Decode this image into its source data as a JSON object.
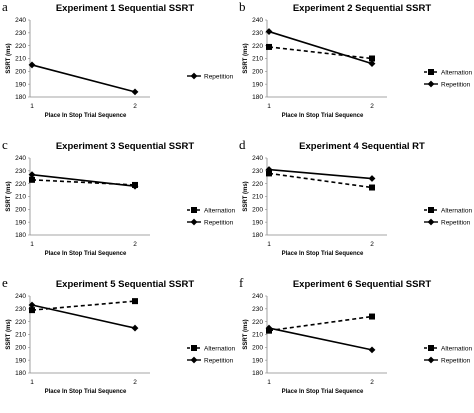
{
  "chart_data": [
    {
      "type": "line",
      "panel": "a",
      "title": "Experiment 1 Sequential SSRT",
      "xlabel": "Place In Stop Trial Sequence",
      "ylabel": "SSRT (ms)",
      "categories": [
        "1",
        "2"
      ],
      "ylim": [
        180,
        240
      ],
      "yticks": [
        180,
        190,
        200,
        210,
        220,
        230,
        240
      ],
      "series": [
        {
          "name": "Repetition",
          "values": [
            205,
            184
          ],
          "dash": false,
          "marker": "diamond"
        }
      ]
    },
    {
      "type": "line",
      "panel": "b",
      "title": "Experiment 2 Sequential SSRT",
      "xlabel": "Place In Stop Trial Sequence",
      "ylabel": "SSRT (ms)",
      "categories": [
        "1",
        "2"
      ],
      "ylim": [
        180,
        240
      ],
      "yticks": [
        180,
        190,
        200,
        210,
        220,
        230,
        240
      ],
      "series": [
        {
          "name": "Alternation",
          "values": [
            219,
            210
          ],
          "dash": true,
          "marker": "square"
        },
        {
          "name": "Repetition",
          "values": [
            231,
            206
          ],
          "dash": false,
          "marker": "diamond"
        }
      ]
    },
    {
      "type": "line",
      "panel": "c",
      "title": "Experiment 3 Sequential SSRT",
      "xlabel": "Place In Stop Trial Sequence",
      "ylabel": "SSRT (ms)",
      "categories": [
        "1",
        "2"
      ],
      "ylim": [
        180,
        240
      ],
      "yticks": [
        180,
        190,
        200,
        210,
        220,
        230,
        240
      ],
      "series": [
        {
          "name": "Alternation",
          "values": [
            223,
            219
          ],
          "dash": true,
          "marker": "square"
        },
        {
          "name": "Repetition",
          "values": [
            227,
            218
          ],
          "dash": false,
          "marker": "diamond"
        }
      ]
    },
    {
      "type": "line",
      "panel": "d",
      "title": "Experiment 4 Sequential RT",
      "xlabel": "Place In Stop Trial Sequence",
      "ylabel": "SSRT (ms)",
      "categories": [
        "1",
        "2"
      ],
      "ylim": [
        180,
        240
      ],
      "yticks": [
        180,
        190,
        200,
        210,
        220,
        230,
        240
      ],
      "series": [
        {
          "name": "Alternation",
          "values": [
            228,
            217
          ],
          "dash": true,
          "marker": "square"
        },
        {
          "name": "Repetition",
          "values": [
            231,
            224
          ],
          "dash": false,
          "marker": "diamond"
        }
      ]
    },
    {
      "type": "line",
      "panel": "e",
      "title": "Experiment 5 Sequential SSRT",
      "xlabel": "Place In Stop Trial Sequence",
      "ylabel": "SSRT (ms)",
      "categories": [
        "1",
        "2"
      ],
      "ylim": [
        180,
        240
      ],
      "yticks": [
        180,
        190,
        200,
        210,
        220,
        230,
        240
      ],
      "series": [
        {
          "name": "Alternation",
          "values": [
            229,
            236
          ],
          "dash": true,
          "marker": "square"
        },
        {
          "name": "Repetition",
          "values": [
            233,
            215
          ],
          "dash": false,
          "marker": "diamond"
        }
      ]
    },
    {
      "type": "line",
      "panel": "f",
      "title": "Experiment 6 Sequential SSRT",
      "xlabel": "Place In Stop Trial Sequence",
      "ylabel": "SSRT (ms)",
      "categories": [
        "1",
        "2"
      ],
      "ylim": [
        180,
        240
      ],
      "yticks": [
        180,
        190,
        200,
        210,
        220,
        230,
        240
      ],
      "series": [
        {
          "name": "Alternation",
          "values": [
            213,
            224
          ],
          "dash": true,
          "marker": "square"
        },
        {
          "name": "Repetition",
          "values": [
            215,
            198
          ],
          "dash": false,
          "marker": "diamond"
        }
      ]
    }
  ]
}
